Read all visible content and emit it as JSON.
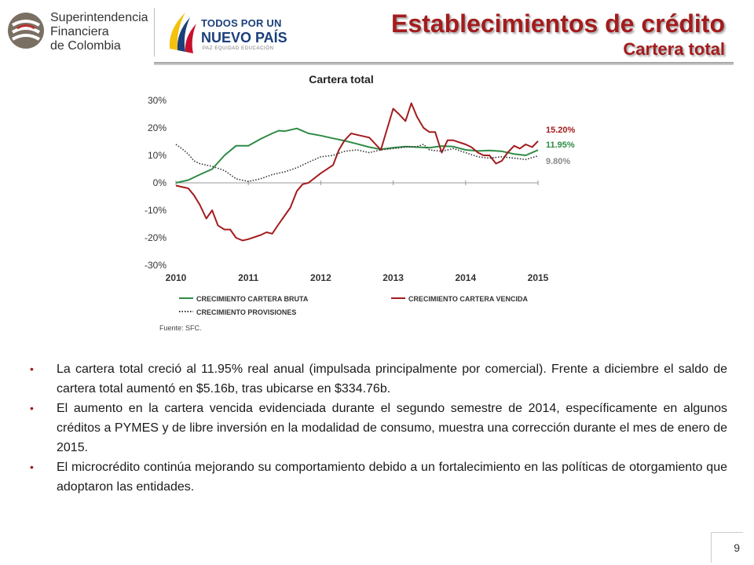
{
  "header": {
    "sfc_logo_lines": [
      "Superintendencia",
      "Financiera",
      "de Colombia"
    ],
    "gov_logo": {
      "line1": "TODOS POR UN",
      "line2": "NUEVO PAÍS",
      "line3": "PAZ EQUIDAD EDUCACIÓN"
    },
    "title": "Establecimientos de crédito",
    "subtitle": "Cartera total"
  },
  "chart_data": {
    "type": "line",
    "title": "Cartera total",
    "x_ticks": [
      "2010",
      "2011",
      "2012",
      "2013",
      "2014",
      "2015"
    ],
    "y_ticks": [
      "30%",
      "20%",
      "10%",
      "0%",
      "-10%",
      "-20%",
      "-30%"
    ],
    "ylim": [
      -30,
      30
    ],
    "xlim": [
      2010,
      2015
    ],
    "series": [
      {
        "name": "CRECIMIENTO CARTERA BRUTA",
        "color": "#2e8b45",
        "style": "solid",
        "end_label": "11.95%",
        "points": [
          [
            2010.0,
            0.0
          ],
          [
            2010.17,
            1.0
          ],
          [
            2010.33,
            3.0
          ],
          [
            2010.5,
            5.0
          ],
          [
            2010.67,
            10.0
          ],
          [
            2010.83,
            13.5
          ],
          [
            2011.0,
            13.5
          ],
          [
            2011.17,
            16.0
          ],
          [
            2011.33,
            18.0
          ],
          [
            2011.42,
            19.0
          ],
          [
            2011.5,
            18.8
          ],
          [
            2011.67,
            19.8
          ],
          [
            2011.83,
            18.0
          ],
          [
            2012.0,
            17.2
          ],
          [
            2012.17,
            16.2
          ],
          [
            2012.33,
            15.3
          ],
          [
            2012.5,
            14.2
          ],
          [
            2012.67,
            13.0
          ],
          [
            2012.83,
            12.2
          ],
          [
            2013.0,
            12.8
          ],
          [
            2013.17,
            13.2
          ],
          [
            2013.33,
            13.0
          ],
          [
            2013.5,
            12.8
          ],
          [
            2013.67,
            13.4
          ],
          [
            2013.83,
            13.2
          ],
          [
            2014.0,
            12.0
          ],
          [
            2014.17,
            11.6
          ],
          [
            2014.33,
            11.8
          ],
          [
            2014.5,
            11.5
          ],
          [
            2014.67,
            10.5
          ],
          [
            2014.83,
            10.0
          ],
          [
            2015.0,
            11.95
          ]
        ]
      },
      {
        "name": "CRECIMIENTO CARTERA VENCIDA",
        "color": "#a31c1e",
        "style": "solid",
        "end_label": "15.20%",
        "points": [
          [
            2010.0,
            -1.0
          ],
          [
            2010.17,
            -2.0
          ],
          [
            2010.25,
            -4.5
          ],
          [
            2010.33,
            -8.0
          ],
          [
            2010.42,
            -13.0
          ],
          [
            2010.5,
            -10.0
          ],
          [
            2010.58,
            -15.5
          ],
          [
            2010.67,
            -17.0
          ],
          [
            2010.75,
            -17.0
          ],
          [
            2010.83,
            -20.0
          ],
          [
            2010.92,
            -21.0
          ],
          [
            2011.0,
            -20.5
          ],
          [
            2011.17,
            -19.0
          ],
          [
            2011.25,
            -18.0
          ],
          [
            2011.33,
            -18.5
          ],
          [
            2011.42,
            -15.0
          ],
          [
            2011.5,
            -12.0
          ],
          [
            2011.58,
            -9.0
          ],
          [
            2011.67,
            -3.0
          ],
          [
            2011.75,
            -0.5
          ],
          [
            2011.83,
            0.0
          ],
          [
            2012.0,
            3.5
          ],
          [
            2012.17,
            6.5
          ],
          [
            2012.25,
            12.0
          ],
          [
            2012.33,
            15.5
          ],
          [
            2012.42,
            18.0
          ],
          [
            2012.5,
            17.5
          ],
          [
            2012.67,
            16.5
          ],
          [
            2012.83,
            12.0
          ],
          [
            2013.0,
            27.0
          ],
          [
            2013.08,
            25.0
          ],
          [
            2013.17,
            22.5
          ],
          [
            2013.25,
            29.0
          ],
          [
            2013.33,
            24.0
          ],
          [
            2013.42,
            20.0
          ],
          [
            2013.5,
            18.5
          ],
          [
            2013.58,
            18.5
          ],
          [
            2013.67,
            11.0
          ],
          [
            2013.75,
            15.5
          ],
          [
            2013.83,
            15.5
          ],
          [
            2014.0,
            14.0
          ],
          [
            2014.08,
            13.0
          ],
          [
            2014.17,
            11.0
          ],
          [
            2014.25,
            10.0
          ],
          [
            2014.33,
            10.0
          ],
          [
            2014.42,
            7.0
          ],
          [
            2014.5,
            8.0
          ],
          [
            2014.58,
            11.0
          ],
          [
            2014.67,
            13.5
          ],
          [
            2014.75,
            12.5
          ],
          [
            2014.83,
            14.0
          ],
          [
            2014.92,
            13.0
          ],
          [
            2015.0,
            15.2
          ]
        ]
      },
      {
        "name": "CRECIMIENTO PROVISIONES",
        "color": "#333333",
        "style": "dotted",
        "end_label": "9.80%",
        "points": [
          [
            2010.0,
            14.0
          ],
          [
            2010.08,
            12.5
          ],
          [
            2010.17,
            10.5
          ],
          [
            2010.25,
            8.0
          ],
          [
            2010.33,
            7.0
          ],
          [
            2010.5,
            6.0
          ],
          [
            2010.67,
            4.5
          ],
          [
            2010.75,
            3.0
          ],
          [
            2010.83,
            1.5
          ],
          [
            2011.0,
            0.5
          ],
          [
            2011.17,
            1.5
          ],
          [
            2011.33,
            3.0
          ],
          [
            2011.5,
            4.0
          ],
          [
            2011.67,
            5.5
          ],
          [
            2011.83,
            7.5
          ],
          [
            2012.0,
            9.5
          ],
          [
            2012.17,
            10.0
          ],
          [
            2012.33,
            11.5
          ],
          [
            2012.5,
            12.0
          ],
          [
            2012.67,
            11.0
          ],
          [
            2012.83,
            12.0
          ],
          [
            2013.0,
            12.5
          ],
          [
            2013.17,
            13.0
          ],
          [
            2013.33,
            13.2
          ],
          [
            2013.42,
            14.0
          ],
          [
            2013.5,
            12.0
          ],
          [
            2013.67,
            11.5
          ],
          [
            2013.83,
            12.5
          ],
          [
            2014.0,
            11.0
          ],
          [
            2014.17,
            9.5
          ],
          [
            2014.33,
            9.0
          ],
          [
            2014.5,
            9.5
          ],
          [
            2014.67,
            9.0
          ],
          [
            2014.83,
            8.5
          ],
          [
            2015.0,
            9.8
          ]
        ]
      }
    ],
    "source": "Fuente: SFC."
  },
  "bullets": [
    "La cartera total creció al 11.95%  real anual (impulsada principalmente por comercial). Frente a diciembre el saldo de cartera total aumentó en $5.16b, tras ubicarse en $334.76b.",
    "El aumento en la cartera vencida evidenciada durante el segundo semestre de 2014, específicamente en algunos créditos a PYMES y de libre inversión en la modalidad de consumo, muestra una corrección durante el mes de enero de 2015.",
    "El microcrédito continúa mejorando su comportamiento debido a un fortalecimiento en las políticas de otorgamiento que adoptaron las entidades."
  ],
  "page_number": "9",
  "bullet_glyph": "•"
}
